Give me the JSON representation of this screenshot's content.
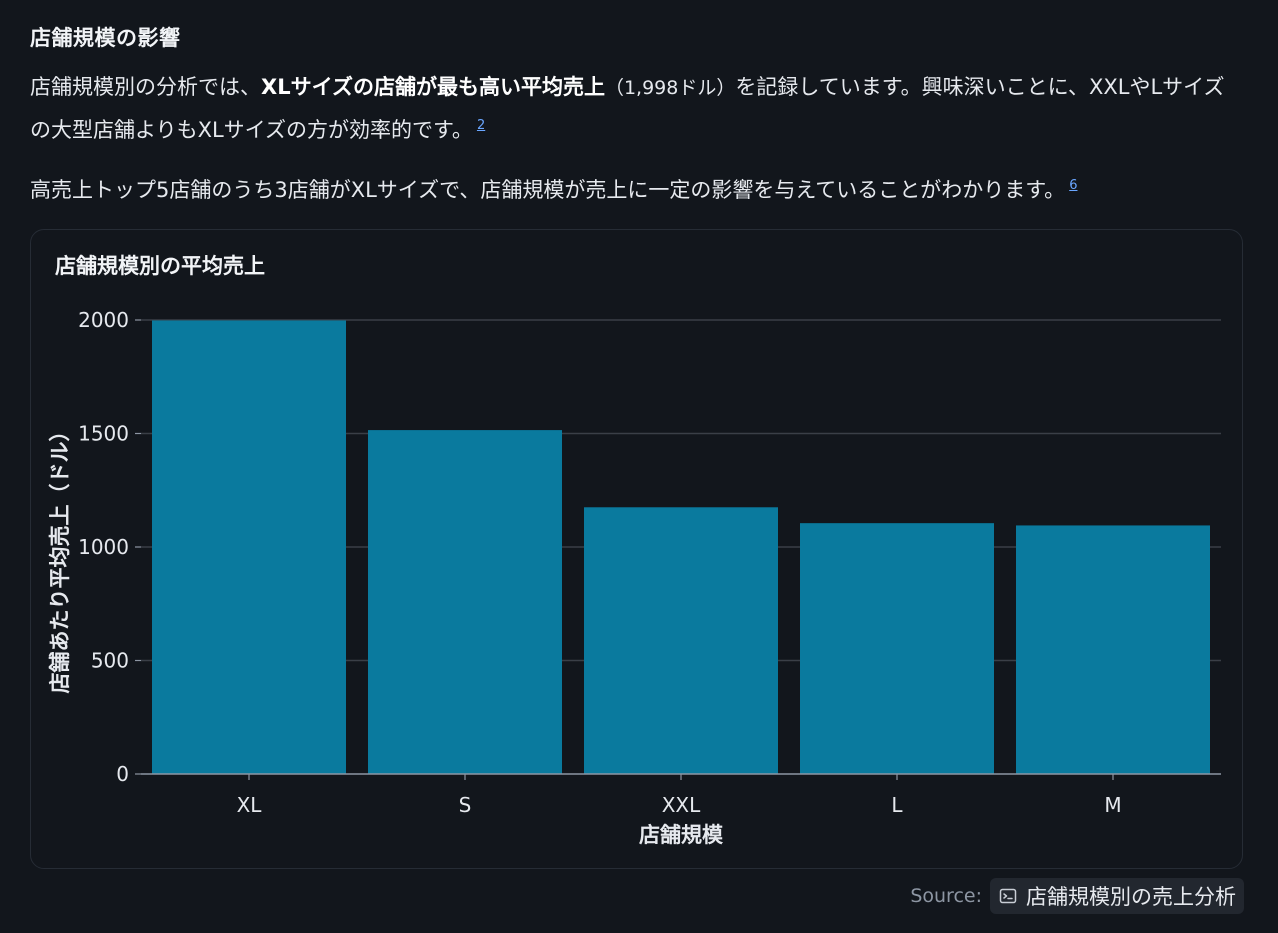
{
  "section_title": "店舗規模の影響",
  "para1": {
    "t1": "店舗規模別の分析では、",
    "bold": "XLサイズの店舗が最も高い平均売上",
    "t2": "（1,998ドル）",
    "t3": "を記録しています。興味深いことに、XXLやLサイズの大型店舗よりもXLサイズの方が効率的です。",
    "cite": "2"
  },
  "para2": {
    "text": "高売上トップ5店舗のうち3店舗がXLサイズで、店舗規模が売上に一定の影響を与えていることがわかります。",
    "cite": "6"
  },
  "chart_data": {
    "type": "bar",
    "title": "店舗規模別の平均売上",
    "xlabel": "店舗規模",
    "ylabel": "店舗あたり平均売上（ドル）",
    "categories": [
      "XL",
      "S",
      "XXL",
      "L",
      "M"
    ],
    "values": [
      1998,
      1515,
      1175,
      1105,
      1095
    ],
    "ylim": [
      0,
      2000
    ],
    "yticks": [
      0,
      500,
      1000,
      1500,
      2000
    ],
    "grid": true,
    "bar_color": "#0a7a9e"
  },
  "source": {
    "label": "Source:",
    "link_text": "店舗規模別の売上分析",
    "icon": "terminal-icon"
  }
}
